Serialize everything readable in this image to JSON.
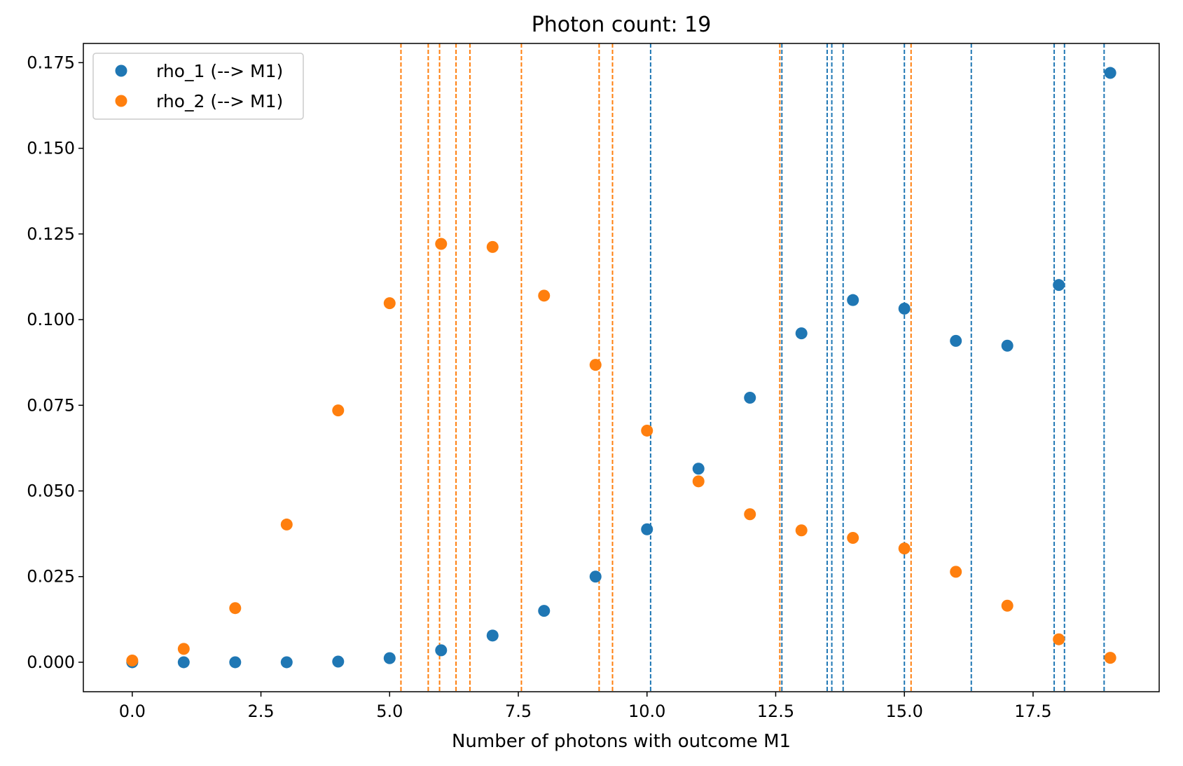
{
  "chart_data": {
    "type": "scatter",
    "title": "Photon count: 19",
    "xlabel": "Number of photons with outcome M1",
    "ylabel": "",
    "xlim": [
      -0.95,
      19.95
    ],
    "ylim": [
      -0.0086,
      0.1806
    ],
    "xticks": [
      0.0,
      2.5,
      5.0,
      7.5,
      10.0,
      12.5,
      15.0,
      17.5
    ],
    "xtick_labels": [
      "0.0",
      "2.5",
      "5.0",
      "7.5",
      "10.0",
      "12.5",
      "15.0",
      "17.5"
    ],
    "yticks": [
      0.0,
      0.025,
      0.05,
      0.075,
      0.1,
      0.125,
      0.15,
      0.175
    ],
    "ytick_labels": [
      "0.000",
      "0.025",
      "0.050",
      "0.075",
      "0.100",
      "0.125",
      "0.150",
      "0.175"
    ],
    "grid": false,
    "legend_position": "upper-left",
    "series": [
      {
        "name": "rho_1 (--> M1)",
        "color": "#1f77b4",
        "x": [
          0,
          1,
          2,
          3,
          4,
          5,
          6,
          7,
          8,
          9,
          10,
          11,
          12,
          13,
          14,
          15,
          16,
          17,
          18,
          19
        ],
        "y": [
          0.0,
          0.0,
          0.0,
          0.0,
          0.0002,
          0.0012,
          0.0035,
          0.0078,
          0.015,
          0.025,
          0.0388,
          0.0565,
          0.0772,
          0.096,
          0.1057,
          0.1032,
          0.0938,
          0.0924,
          0.1101,
          0.172
        ],
        "vlines": [
          10.07,
          12.62,
          13.5,
          13.59,
          13.81,
          15.0,
          16.3,
          17.91,
          18.11,
          18.88
        ]
      },
      {
        "name": "rho_2 (--> M1)",
        "color": "#ff7f0e",
        "x": [
          0,
          1,
          2,
          3,
          4,
          5,
          6,
          7,
          8,
          9,
          10,
          11,
          12,
          13,
          14,
          15,
          16,
          17,
          18,
          19
        ],
        "y": [
          0.0005,
          0.0039,
          0.0158,
          0.0402,
          0.0735,
          0.1048,
          0.1221,
          0.1212,
          0.107,
          0.0868,
          0.0676,
          0.0528,
          0.0432,
          0.0385,
          0.0363,
          0.0332,
          0.0264,
          0.0165,
          0.0067,
          0.0013
        ],
        "vlines": [
          5.22,
          5.75,
          5.97,
          6.29,
          6.56,
          7.56,
          9.07,
          9.33,
          12.58,
          15.13
        ]
      }
    ]
  }
}
